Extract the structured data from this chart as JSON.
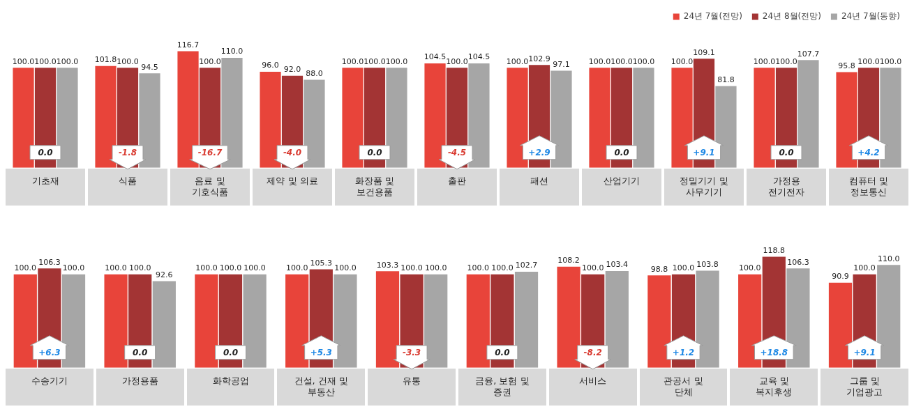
{
  "chart_data": [
    {
      "type": "bar",
      "categories": [
        "기초재",
        "식품",
        "음료 및\n기호식품",
        "제약 및 의료",
        "화장품 및\n보건용품",
        "출판",
        "패션",
        "산업기기",
        "정밀기기 및\n사무기기",
        "가정용\n전기전자",
        "컴퓨터 및\n정보통신"
      ],
      "series": [
        {
          "name": "24년 7월(전망)",
          "color": "#e8443a",
          "values": [
            100.0,
            101.8,
            116.7,
            96.0,
            100.0,
            104.5,
            100.0,
            100.0,
            100.0,
            100.0,
            95.8
          ],
          "value_labels": [
            "100.0",
            "101.8",
            "116.7",
            "96.0",
            "100.0",
            "104.5",
            "100.0",
            "100.0",
            "100.0",
            "100.0",
            "95.8"
          ]
        },
        {
          "name": "24년 8월(전망)",
          "color": "#a33434",
          "values": [
            100.0,
            100.0,
            100.0,
            92.0,
            100.0,
            100.0,
            102.9,
            100.0,
            109.1,
            100.0,
            100.0
          ],
          "value_labels": [
            "100.0",
            "100.0",
            "100.0",
            "92.0",
            "100.0",
            "100.0",
            "102.9",
            "100.0",
            "109.1",
            "100.0",
            "100.0"
          ]
        },
        {
          "name": "24년 7월(동향)",
          "color": "#a6a6a6",
          "values": [
            100.0,
            94.5,
            110.0,
            88.0,
            100.0,
            104.5,
            97.1,
            100.0,
            81.8,
            107.7,
            100.0
          ],
          "value_labels": [
            "100.0",
            "94.5",
            "110.0",
            "88.0",
            "100.0",
            "104.5",
            "97.1",
            "100.0",
            "81.8",
            "107.7",
            "100.0"
          ]
        }
      ],
      "tick_labels": "x",
      "legend": "top right",
      "annotations": [
        "0.0",
        "-1.8",
        "-16.7",
        "-4.0",
        "0.0",
        "-4.5",
        "+2.9",
        "0.0",
        "+9.1",
        "0.0",
        "+4.2"
      ]
    },
    {
      "type": "bar",
      "categories": [
        "수송기기",
        "가정용품",
        "화학공업",
        "건설, 건재 및\n부동산",
        "유통",
        "금융, 보험 및\n증권",
        "서비스",
        "관공서 및\n단체",
        "교육 및\n복지후생",
        "그룹 및\n기업광고"
      ],
      "series": [
        {
          "color": "#e8443a",
          "values": [
            100.0,
            100.0,
            100.0,
            100.0,
            103.3,
            100.0,
            108.2,
            98.8,
            100.0,
            90.9
          ],
          "value_labels": [
            "100.0",
            "100.0",
            "100.0",
            "100.0",
            "103.3",
            "100.0",
            "108.2",
            "98.8",
            "100.0",
            "90.9"
          ]
        },
        {
          "color": "#a33434",
          "values": [
            106.3,
            100.0,
            100.0,
            105.3,
            100.0,
            100.0,
            100.0,
            100.0,
            118.8,
            100.0
          ],
          "value_labels": [
            "106.3",
            "100.0",
            "100.0",
            "105.3",
            "100.0",
            "100.0",
            "100.0",
            "100.0",
            "118.8",
            "100.0"
          ]
        },
        {
          "color": "#a6a6a6",
          "values": [
            100.0,
            92.6,
            100.0,
            100.0,
            100.0,
            102.7,
            103.4,
            103.8,
            106.3,
            110.0
          ],
          "value_labels": [
            "100.0",
            "92.6",
            "100.0",
            "100.0",
            "100.0",
            "102.7",
            "103.4",
            "103.8",
            "106.3",
            "110.0"
          ]
        }
      ],
      "tick_labels": "x",
      "annotations": [
        "+6.3",
        "0.0",
        "0.0",
        "+5.3",
        "-3.3",
        "0.0",
        "-8.2",
        "+1.2",
        "+18.8",
        "+9.1"
      ]
    }
  ]
}
